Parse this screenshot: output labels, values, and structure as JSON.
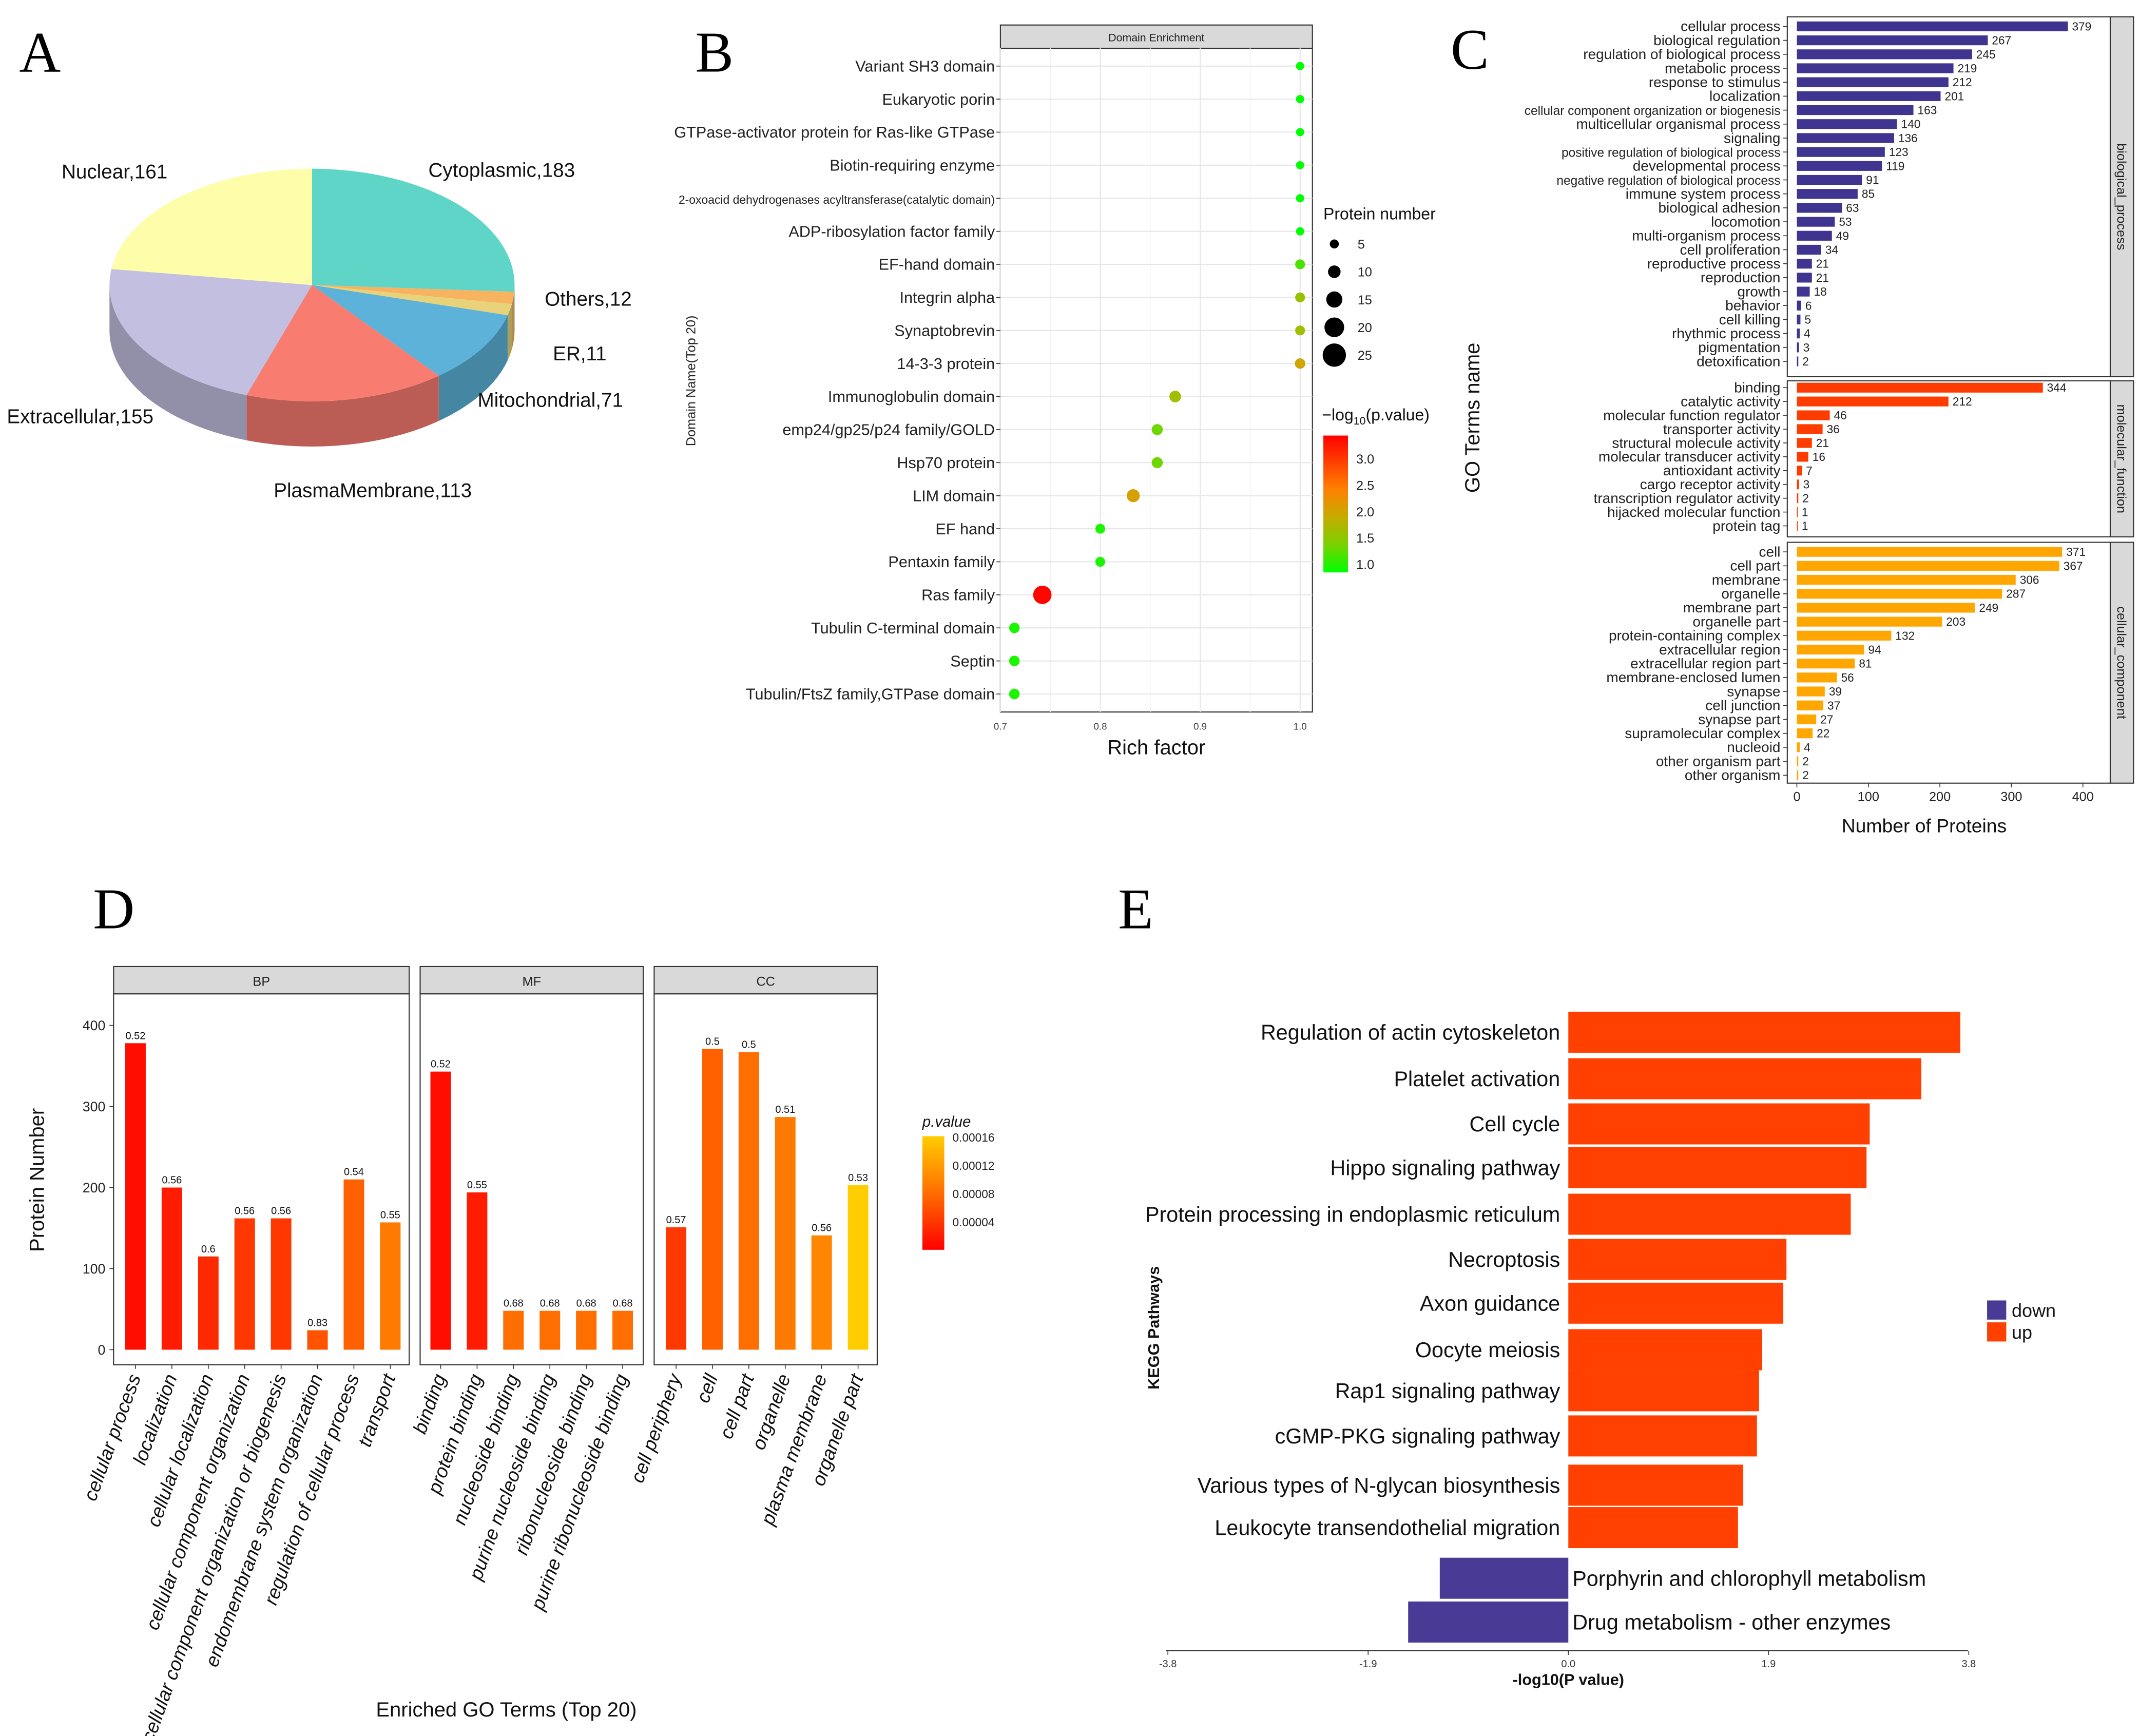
{
  "panel_letters": [
    "A",
    "B",
    "C",
    "D",
    "E"
  ],
  "chart_data": [
    {
      "panel": "A",
      "type": "pie",
      "style": "3d",
      "slices": [
        {
          "name": "Cytoplasmic",
          "value": 183,
          "label": "Cytoplasmic,183",
          "color": "#5fd5c8"
        },
        {
          "name": "Others",
          "value": 12,
          "label": "Others,12",
          "color": "#f7b35f"
        },
        {
          "name": "ER",
          "value": 11,
          "label": "ER,11",
          "color": "#e8d27a"
        },
        {
          "name": "Mitochondrial",
          "value": 71,
          "label": "Mitochondrial,71",
          "color": "#5cb2d8"
        },
        {
          "name": "PlasmaMembrane",
          "value": 113,
          "label": "PlasmaMembrane,113",
          "color": "#f97c70"
        },
        {
          "name": "Extracellular",
          "value": 155,
          "label": "Extracellular,155",
          "color": "#c2bfe0"
        },
        {
          "name": "Nuclear",
          "value": 161,
          "label": "Nuclear,161",
          "color": "#fdfdaa"
        }
      ]
    },
    {
      "panel": "B",
      "type": "scatter",
      "title": "Domain Enrichment",
      "xlabel": "Rich factor",
      "ylabel": "Domain Name(Top 20)",
      "xlim": [
        0.7,
        1.0
      ],
      "xticks": [
        "0.7",
        "0.8",
        "0.9",
        "1.0"
      ],
      "size_legend": {
        "title": "Protein number",
        "values": [
          "5",
          "10",
          "15",
          "20",
          "25"
        ]
      },
      "color_legend": {
        "title_prefix": "−log",
        "title_sub": "10",
        "title_suffix": "(p.value)",
        "ticks": [
          "3.0",
          "2.5",
          "2.0",
          "1.5",
          "1.0"
        ],
        "range": [
          1.0,
          3.44
        ]
      },
      "points": [
        {
          "name": "Variant SH3 domain",
          "rich": 1.0,
          "count": 2,
          "logp": 1.0
        },
        {
          "name": "Eukaryotic porin",
          "rich": 1.0,
          "count": 2,
          "logp": 1.0
        },
        {
          "name": "GTPase-activator protein for Ras-like GTPase",
          "rich": 1.0,
          "count": 2,
          "logp": 1.0
        },
        {
          "name": "Biotin-requiring enzyme",
          "rich": 1.0,
          "count": 2,
          "logp": 1.0
        },
        {
          "name": "2-oxoacid dehydrogenases acyltransferase(catalytic domain)",
          "rich": 1.0,
          "count": 2,
          "logp": 1.0
        },
        {
          "name": "ADP-ribosylation factor family",
          "rich": 1.0,
          "count": 2,
          "logp": 1.0
        },
        {
          "name": "EF-hand domain",
          "rich": 1.0,
          "count": 4,
          "logp": 1.3
        },
        {
          "name": "Integrin alpha",
          "rich": 1.0,
          "count": 4,
          "logp": 1.7
        },
        {
          "name": "Synaptobrevin",
          "rich": 1.0,
          "count": 4,
          "logp": 1.75
        },
        {
          "name": "14-3-3 protein",
          "rich": 1.0,
          "count": 5,
          "logp": 2.05
        },
        {
          "name": "Immunoglobulin domain",
          "rich": 0.875,
          "count": 7,
          "logp": 1.75
        },
        {
          "name": "emp24/gp25/p24 family/GOLD",
          "rich": 0.857,
          "count": 6,
          "logp": 1.45
        },
        {
          "name": "Hsp70 protein",
          "rich": 0.857,
          "count": 6,
          "logp": 1.45
        },
        {
          "name": "LIM domain",
          "rich": 0.833,
          "count": 10,
          "logp": 2.1
        },
        {
          "name": "EF hand",
          "rich": 0.8,
          "count": 4,
          "logp": 1.1
        },
        {
          "name": "Pentaxin family",
          "rich": 0.8,
          "count": 4,
          "logp": 1.1
        },
        {
          "name": "Ras family",
          "rich": 0.742,
          "count": 26,
          "logp": 3.4
        },
        {
          "name": "Tubulin C-terminal domain",
          "rich": 0.714,
          "count": 5,
          "logp": 1.1
        },
        {
          "name": "Septin",
          "rich": 0.714,
          "count": 5,
          "logp": 1.1
        },
        {
          "name": "Tubulin/FtsZ family,GTPase domain",
          "rich": 0.714,
          "count": 5,
          "logp": 1.1
        }
      ]
    },
    {
      "panel": "C",
      "type": "bar",
      "orientation": "horizontal",
      "xlabel": "Number of Proteins",
      "ylabel": "GO Terms name",
      "xlim": [
        0,
        400
      ],
      "xticks": [
        "0",
        "100",
        "200",
        "300",
        "400"
      ],
      "groups": [
        {
          "name": "biological_process",
          "color": "#3f3591",
          "terms": [
            {
              "name": "cellular process",
              "value": 379
            },
            {
              "name": "biological regulation",
              "value": 267
            },
            {
              "name": "regulation of biological process",
              "value": 245
            },
            {
              "name": "metabolic process",
              "value": 219
            },
            {
              "name": "response to stimulus",
              "value": 212
            },
            {
              "name": "localization",
              "value": 201
            },
            {
              "name": "cellular component organization or biogenesis",
              "value": 163
            },
            {
              "name": "multicellular organismal process",
              "value": 140
            },
            {
              "name": "signaling",
              "value": 136
            },
            {
              "name": "positive regulation of biological process",
              "value": 123
            },
            {
              "name": "developmental process",
              "value": 119
            },
            {
              "name": "negative regulation of biological process",
              "value": 91
            },
            {
              "name": "immune system process",
              "value": 85
            },
            {
              "name": "biological adhesion",
              "value": 63
            },
            {
              "name": "locomotion",
              "value": 53
            },
            {
              "name": "multi-organism process",
              "value": 49
            },
            {
              "name": "cell proliferation",
              "value": 34
            },
            {
              "name": "reproductive process",
              "value": 21
            },
            {
              "name": "reproduction",
              "value": 21
            },
            {
              "name": "growth",
              "value": 18
            },
            {
              "name": "behavior",
              "value": 6
            },
            {
              "name": "cell killing",
              "value": 5
            },
            {
              "name": "rhythmic process",
              "value": 4
            },
            {
              "name": "pigmentation",
              "value": 3
            },
            {
              "name": "detoxification",
              "value": 2
            }
          ]
        },
        {
          "name": "molecular_function",
          "color": "#ff3c00",
          "terms": [
            {
              "name": "binding",
              "value": 344
            },
            {
              "name": "catalytic activity",
              "value": 212
            },
            {
              "name": "molecular function regulator",
              "value": 46
            },
            {
              "name": "transporter activity",
              "value": 36
            },
            {
              "name": "structural molecule activity",
              "value": 21
            },
            {
              "name": "molecular transducer activity",
              "value": 16
            },
            {
              "name": "antioxidant activity",
              "value": 7
            },
            {
              "name": "cargo receptor activity",
              "value": 3
            },
            {
              "name": "transcription regulator activity",
              "value": 2
            },
            {
              "name": "hijacked molecular function",
              "value": 1
            },
            {
              "name": "protein tag",
              "value": 1
            }
          ]
        },
        {
          "name": "cellular_component",
          "color": "#ffa600",
          "terms": [
            {
              "name": "cell",
              "value": 371
            },
            {
              "name": "cell part",
              "value": 367
            },
            {
              "name": "membrane",
              "value": 306
            },
            {
              "name": "organelle",
              "value": 287
            },
            {
              "name": "membrane part",
              "value": 249
            },
            {
              "name": "organelle part",
              "value": 203
            },
            {
              "name": "protein-containing complex",
              "value": 132
            },
            {
              "name": "extracellular region",
              "value": 94
            },
            {
              "name": "extracellular region part",
              "value": 81
            },
            {
              "name": "membrane-enclosed lumen",
              "value": 56
            },
            {
              "name": "synapse",
              "value": 39
            },
            {
              "name": "cell junction",
              "value": 37
            },
            {
              "name": "synapse part",
              "value": 27
            },
            {
              "name": "supramolecular complex",
              "value": 22
            },
            {
              "name": "nucleoid",
              "value": 4
            },
            {
              "name": "other organism part",
              "value": 2
            },
            {
              "name": "other organism",
              "value": 2
            }
          ]
        }
      ]
    },
    {
      "panel": "D",
      "type": "bar",
      "xlabel": "Enriched GO Terms (Top 20)",
      "ylabel": "Protein Number",
      "ylim": [
        0,
        400
      ],
      "yticks": [
        "0",
        "100",
        "200",
        "300",
        "400"
      ],
      "color_legend": {
        "title": "p.value",
        "ticks": [
          "0.00016",
          "0.00012",
          "0.00008",
          "0.00004"
        ]
      },
      "facets": [
        {
          "name": "BP",
          "bars": [
            {
              "term": "cellular process",
              "value": 378,
              "label": "0.52",
              "p": 1e-05
            },
            {
              "term": "localization",
              "value": 200,
              "label": "0.56",
              "p": 2e-05
            },
            {
              "term": "cellular localization",
              "value": 115,
              "label": "0.6",
              "p": 3e-05
            },
            {
              "term": "cellular component organization",
              "value": 162,
              "label": "0.56",
              "p": 4e-05
            },
            {
              "term": "cellular component organization or biogenesis",
              "value": 162,
              "label": "0.56",
              "p": 4e-05
            },
            {
              "term": "endomembrane system organization",
              "value": 24,
              "label": "0.83",
              "p": 6e-05
            },
            {
              "term": "regulation of cellular process",
              "value": 210,
              "label": "0.54",
              "p": 7e-05
            },
            {
              "term": "transport",
              "value": 157,
              "label": "0.55",
              "p": 9e-05
            }
          ]
        },
        {
          "name": "MF",
          "bars": [
            {
              "term": "binding",
              "value": 343,
              "label": "0.52",
              "p": 1e-05
            },
            {
              "term": "protein binding",
              "value": 194,
              "label": "0.55",
              "p": 2e-05
            },
            {
              "term": "nucleoside binding",
              "value": 48,
              "label": "0.68",
              "p": 8e-05
            },
            {
              "term": "purine nucleoside binding",
              "value": 48,
              "label": "0.68",
              "p": 8e-05
            },
            {
              "term": "ribonucleoside binding",
              "value": 48,
              "label": "0.68",
              "p": 8e-05
            },
            {
              "term": "purine ribonucleoside binding",
              "value": 48,
              "label": "0.68",
              "p": 8e-05
            }
          ]
        },
        {
          "name": "CC",
          "bars": [
            {
              "term": "cell periphery",
              "value": 151,
              "label": "0.57",
              "p": 4e-05
            },
            {
              "term": "cell",
              "value": 371,
              "label": "0.5",
              "p": 7e-05
            },
            {
              "term": "cell part",
              "value": 367,
              "label": "0.5",
              "p": 8e-05
            },
            {
              "term": "organelle",
              "value": 287,
              "label": "0.51",
              "p": 9e-05
            },
            {
              "term": "plasma membrane",
              "value": 141,
              "label": "0.56",
              "p": 0.0001
            },
            {
              "term": "organelle part",
              "value": 203,
              "label": "0.53",
              "p": 0.00016
            }
          ]
        }
      ]
    },
    {
      "panel": "E",
      "type": "bar",
      "orientation": "horizontal",
      "xlabel": "-log10(P value)",
      "ylabel": "KEGG Pathways",
      "xlim": [
        -3.8,
        3.8
      ],
      "xticks": [
        "-3.8",
        "-1.9",
        "0.0",
        "1.9",
        "3.8"
      ],
      "legend": [
        {
          "name": "down",
          "color": "#483a95"
        },
        {
          "name": "up",
          "color": "#ff4000"
        }
      ],
      "bars": [
        {
          "name": "Regulation of actin cytoskeleton",
          "value": 3.72,
          "dir": "up"
        },
        {
          "name": "Platelet activation",
          "value": 3.35,
          "dir": "up"
        },
        {
          "name": "Cell cycle",
          "value": 2.86,
          "dir": "up"
        },
        {
          "name": "Hippo signaling pathway",
          "value": 2.83,
          "dir": "up"
        },
        {
          "name": "Protein processing in endoplasmic reticulum",
          "value": 2.68,
          "dir": "up"
        },
        {
          "name": "Necroptosis",
          "value": 2.07,
          "dir": "up"
        },
        {
          "name": "Axon guidance",
          "value": 2.04,
          "dir": "up"
        },
        {
          "name": "Oocyte meiosis",
          "value": 1.84,
          "dir": "up"
        },
        {
          "name": "Rap1 signaling pathway",
          "value": 1.81,
          "dir": "up"
        },
        {
          "name": "cGMP-PKG signaling pathway",
          "value": 1.79,
          "dir": "up"
        },
        {
          "name": "Various types of N-glycan biosynthesis",
          "value": 1.66,
          "dir": "up"
        },
        {
          "name": "Leukocyte transendothelial migration",
          "value": 1.61,
          "dir": "up"
        },
        {
          "name": "Porphyrin and chlorophyll metabolism",
          "value": -1.22,
          "dir": "down"
        },
        {
          "name": "Drug metabolism - other enzymes",
          "value": -1.52,
          "dir": "down"
        }
      ]
    }
  ]
}
